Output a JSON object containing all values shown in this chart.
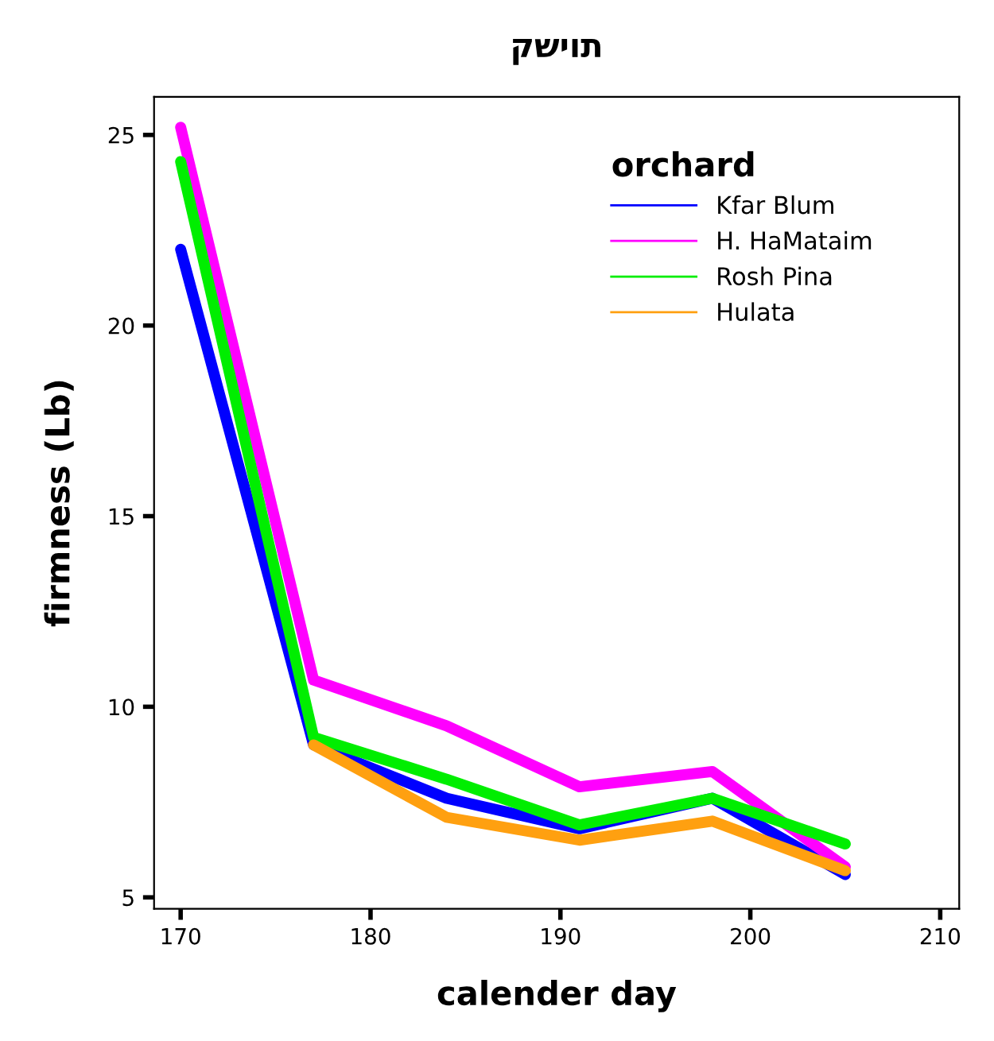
{
  "chart_data": {
    "type": "line",
    "title": "קשיות",
    "xlabel": "calender day",
    "ylabel": "firmness (Lb)",
    "legend_title": "orchard",
    "x": [
      170,
      177,
      184,
      191,
      198,
      205
    ],
    "series": [
      {
        "name": "Kfar Blum",
        "color": "#0000ff",
        "values": [
          22.0,
          9.0,
          7.6,
          6.8,
          7.6,
          5.6
        ]
      },
      {
        "name": "H. HaMataim",
        "color": "#ff00ff",
        "values": [
          25.2,
          10.7,
          9.5,
          7.9,
          8.3,
          5.8
        ]
      },
      {
        "name": "Rosh Pina",
        "color": "#00ee00",
        "values": [
          24.3,
          9.2,
          8.1,
          6.9,
          7.6,
          6.4
        ]
      },
      {
        "name": "Hulata",
        "color": "#ffa010",
        "x": [
          177,
          184,
          191,
          198,
          205
        ],
        "values": [
          9.0,
          7.1,
          6.5,
          7.0,
          5.7
        ]
      }
    ],
    "xlim": [
      168.6,
      211
    ],
    "ylim": [
      4.7,
      26.0
    ],
    "xticks": [
      170,
      180,
      190,
      200,
      210
    ],
    "yticks": [
      5,
      10,
      15,
      20,
      25
    ],
    "grid": false,
    "legend": "top right",
    "marker": "none",
    "line_style": "solid"
  }
}
